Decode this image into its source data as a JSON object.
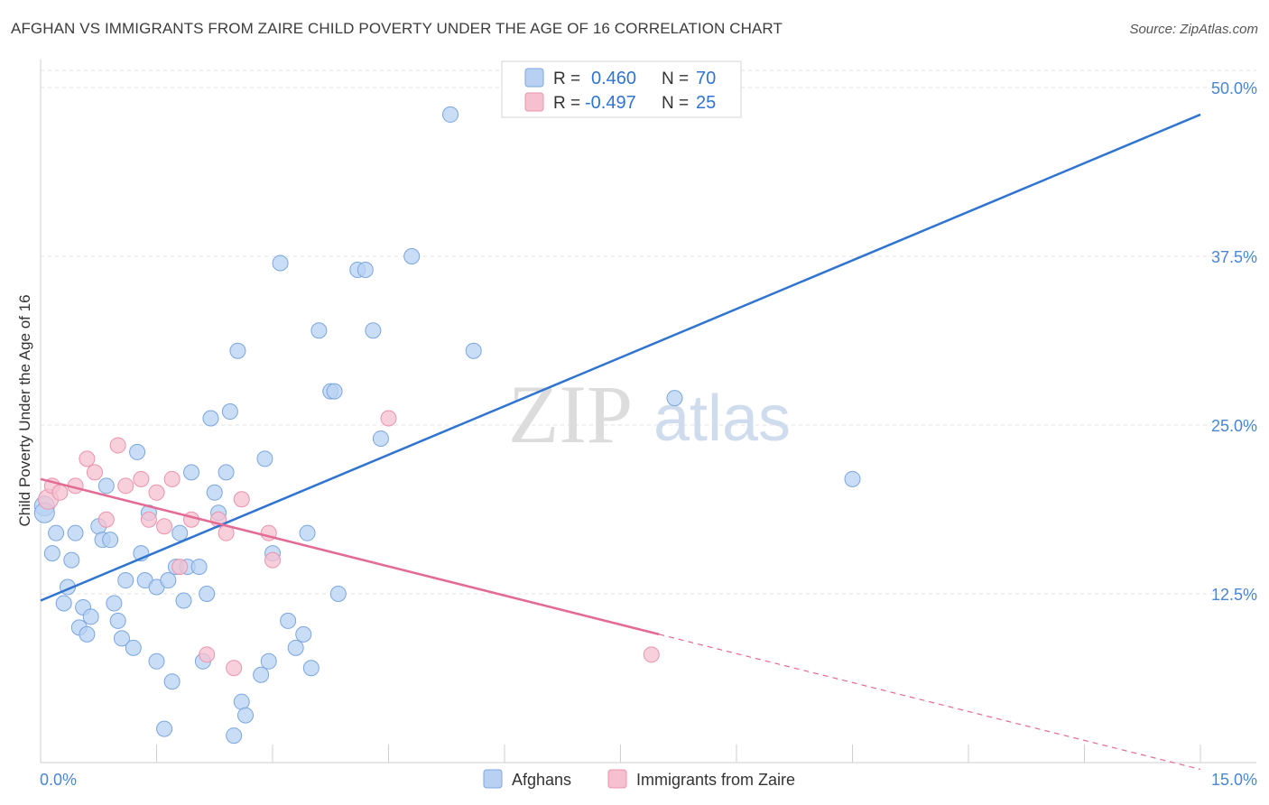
{
  "title": "AFGHAN VS IMMIGRANTS FROM ZAIRE CHILD POVERTY UNDER THE AGE OF 16 CORRELATION CHART",
  "source": "Source: ZipAtlas.com",
  "watermark": {
    "zip": "ZIP",
    "atlas": "atlas"
  },
  "colors": {
    "blue_fill": "#b8d1f3",
    "blue_stroke": "#7aa6e0",
    "blue_line": "#2f74d0",
    "pink_fill": "#f6c0d0",
    "pink_stroke": "#ea93ad",
    "pink_line": "#e46a94",
    "tick_label": "#4a86d4",
    "grid": "#e2e2e2"
  },
  "legend": {
    "rows": [
      {
        "r_label": "R =",
        "r_value": "0.460",
        "n_label": "N =",
        "n_value": "70"
      },
      {
        "r_label": "R =",
        "r_value": "-0.497",
        "n_label": "N =",
        "n_value": "25"
      }
    ]
  },
  "bottom_legend": [
    "Afghans",
    "Immigrants from Zaire"
  ],
  "chart_data": {
    "type": "scatter",
    "title": "AFGHAN VS IMMIGRANTS FROM ZAIRE CHILD POVERTY UNDER THE AGE OF 16 CORRELATION CHART",
    "xlabel": "",
    "ylabel": "Child Poverty Under the Age of 16",
    "xlim": [
      0,
      15
    ],
    "ylim": [
      0,
      50
    ],
    "x_tick_labels": [
      "0.0%",
      "15.0%"
    ],
    "y_ticks": [
      12.5,
      25.0,
      37.5,
      50.0
    ],
    "y_tick_labels": [
      "12.5%",
      "25.0%",
      "37.5%",
      "50.0%"
    ],
    "grid": true,
    "legend_position": "top-center",
    "series": [
      {
        "name": "Afghans",
        "r": 0.46,
        "n": 70,
        "trend": {
          "x": [
            0,
            15
          ],
          "y": [
            12.0,
            48.0
          ]
        },
        "points": [
          [
            0.05,
            19.0
          ],
          [
            0.05,
            18.5
          ],
          [
            0.15,
            15.5
          ],
          [
            0.2,
            17.0
          ],
          [
            0.3,
            11.8
          ],
          [
            0.35,
            13.0
          ],
          [
            0.4,
            15.0
          ],
          [
            0.45,
            17.0
          ],
          [
            0.5,
            10.0
          ],
          [
            0.55,
            11.5
          ],
          [
            0.6,
            9.5
          ],
          [
            0.65,
            10.8
          ],
          [
            0.75,
            17.5
          ],
          [
            0.8,
            16.5
          ],
          [
            0.85,
            20.5
          ],
          [
            0.9,
            16.5
          ],
          [
            0.95,
            11.8
          ],
          [
            1.0,
            10.5
          ],
          [
            1.05,
            9.2
          ],
          [
            1.1,
            13.5
          ],
          [
            1.2,
            8.5
          ],
          [
            1.25,
            23.0
          ],
          [
            1.3,
            15.5
          ],
          [
            1.35,
            13.5
          ],
          [
            1.4,
            18.5
          ],
          [
            1.5,
            13.0
          ],
          [
            1.5,
            7.5
          ],
          [
            1.6,
            2.5
          ],
          [
            1.65,
            13.5
          ],
          [
            1.7,
            6.0
          ],
          [
            1.75,
            14.5
          ],
          [
            1.8,
            17.0
          ],
          [
            1.85,
            12.0
          ],
          [
            1.9,
            14.5
          ],
          [
            1.95,
            21.5
          ],
          [
            2.05,
            14.5
          ],
          [
            2.1,
            7.5
          ],
          [
            2.15,
            12.5
          ],
          [
            2.2,
            25.5
          ],
          [
            2.25,
            20.0
          ],
          [
            2.3,
            18.5
          ],
          [
            2.4,
            21.5
          ],
          [
            2.45,
            26.0
          ],
          [
            2.5,
            2.0
          ],
          [
            2.55,
            30.5
          ],
          [
            2.6,
            4.5
          ],
          [
            2.65,
            3.5
          ],
          [
            2.85,
            6.5
          ],
          [
            2.9,
            22.5
          ],
          [
            2.95,
            7.5
          ],
          [
            3.0,
            15.5
          ],
          [
            3.1,
            37.0
          ],
          [
            3.2,
            10.5
          ],
          [
            3.3,
            8.5
          ],
          [
            3.4,
            9.5
          ],
          [
            3.45,
            17.0
          ],
          [
            3.5,
            7.0
          ],
          [
            3.6,
            32.0
          ],
          [
            3.75,
            27.5
          ],
          [
            3.8,
            27.5
          ],
          [
            3.85,
            12.5
          ],
          [
            4.1,
            36.5
          ],
          [
            4.2,
            36.5
          ],
          [
            4.3,
            32.0
          ],
          [
            4.4,
            24.0
          ],
          [
            4.8,
            37.5
          ],
          [
            5.3,
            48.0
          ],
          [
            5.6,
            30.5
          ],
          [
            8.2,
            27.0
          ],
          [
            10.5,
            21.0
          ]
        ]
      },
      {
        "name": "Immigrants from Zaire",
        "r": -0.497,
        "n": 25,
        "trend": {
          "x": [
            0,
            8.0
          ],
          "y": [
            21.0,
            9.5
          ]
        },
        "trend_dashed": {
          "x": [
            8.0,
            15.0
          ],
          "y": [
            9.5,
            -0.5
          ]
        },
        "points": [
          [
            0.1,
            19.5
          ],
          [
            0.15,
            20.5
          ],
          [
            0.25,
            20.0
          ],
          [
            0.45,
            20.5
          ],
          [
            0.6,
            22.5
          ],
          [
            0.7,
            21.5
          ],
          [
            0.85,
            18.0
          ],
          [
            1.0,
            23.5
          ],
          [
            1.1,
            20.5
          ],
          [
            1.3,
            21.0
          ],
          [
            1.4,
            18.0
          ],
          [
            1.5,
            20.0
          ],
          [
            1.6,
            17.5
          ],
          [
            1.7,
            21.0
          ],
          [
            1.8,
            14.5
          ],
          [
            1.95,
            18.0
          ],
          [
            2.15,
            8.0
          ],
          [
            2.3,
            18.0
          ],
          [
            2.4,
            17.0
          ],
          [
            2.5,
            7.0
          ],
          [
            2.6,
            19.5
          ],
          [
            2.95,
            17.0
          ],
          [
            3.0,
            15.0
          ],
          [
            4.5,
            25.5
          ],
          [
            7.9,
            8.0
          ]
        ]
      }
    ]
  }
}
